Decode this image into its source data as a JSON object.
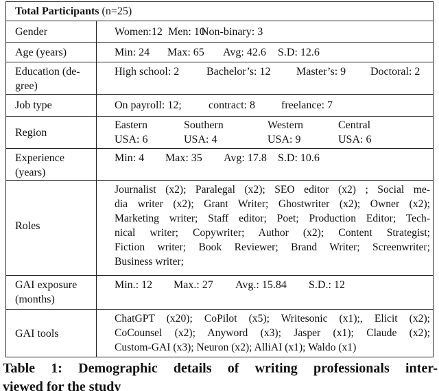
{
  "header": {
    "title_bold": "Total Participants",
    "title_rest": "(n=25)"
  },
  "rows": {
    "gender": {
      "label": "Gender",
      "values": [
        "Women:12",
        "Men: 10",
        "Non-binary: 3"
      ]
    },
    "age": {
      "label": "Age (years)",
      "values": [
        "Min: 24",
        "Max: 65",
        "Avg: 42.6",
        "S.D: 12.6"
      ]
    },
    "education": {
      "label_lines": [
        "Education (de-",
        "gree)"
      ],
      "values": [
        "High school: 2",
        "Bachelor’s: 12",
        "Master’s: 9",
        "Doctoral: 2"
      ]
    },
    "job": {
      "label": "Job type",
      "values": [
        "On payroll: 12;",
        "contract: 8",
        "freelance: 7"
      ]
    },
    "region": {
      "label": "Region",
      "values": [
        [
          "Eastern",
          "USA: 6"
        ],
        [
          "Southern",
          "USA: 4"
        ],
        [
          "Western",
          "USA: 9"
        ],
        [
          "Central",
          "USA: 6"
        ]
      ]
    },
    "experience": {
      "label_lines": [
        "Experience",
        "(years)"
      ],
      "values": [
        "Min: 4",
        "Max: 35",
        "Avg: 17.8",
        "S.D: 10.6"
      ]
    },
    "roles": {
      "label": "Roles",
      "lines": [
        "Journalist (x2); Paralegal (x2); SEO editor (x2) ; Social me-",
        "dia writer (x2); Grant Writer; Ghostwriter (x2); Owner (x2);",
        "Marketing writer; Staff editor; Poet; Production Editor; Tech-",
        "nical writer; Copywriter; Author (x2); Content Strategist;",
        "Fiction writer; Book Reviewer; Brand Writer; Screenwriter;",
        "Business writer;"
      ]
    },
    "exposure": {
      "label_lines": [
        "GAI exposure",
        "(months)"
      ],
      "values": [
        "Min.: 12",
        "Max.: 27",
        "Avg.: 15.84",
        "S.D.: 12"
      ]
    },
    "tools": {
      "label": "GAI tools",
      "lines": [
        "ChatGPT (x20); CoPilot (x5); Writesonic (x1);, Elicit (x2);",
        "CoCounsel (x2); Anyword (x3); Jasper (x1); Claude (x2);",
        "Custom-GAI (x3); Neuron (x2); AlliAI (x1); Waldo (x1)"
      ]
    }
  },
  "caption": {
    "lines": [
      "Table 1: Demographic details of writing professionals inter-",
      "viewed for the study"
    ]
  }
}
